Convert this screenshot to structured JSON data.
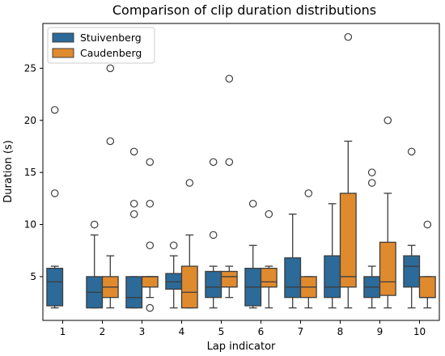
{
  "chart_data": {
    "type": "box",
    "title": "Comparison of clip duration distributions",
    "xlabel": "Lap indicator",
    "ylabel": "Duration (s)",
    "categories": [
      "1",
      "2",
      "3",
      "4",
      "5",
      "6",
      "7",
      "8",
      "9",
      "10"
    ],
    "ylim": [
      0.8,
      29.3
    ],
    "yticks": [
      5,
      10,
      15,
      20,
      25
    ],
    "grid": false,
    "legend_position": "top-left",
    "series": [
      {
        "name": "Stuivenberg",
        "color": "#2b6a99",
        "boxes": [
          {
            "category": "1",
            "whisker_low": 2,
            "q1": 2.2,
            "median": 4.5,
            "q3": 5.8,
            "whisker_high": 6,
            "outliers": [
              13,
              21
            ]
          },
          {
            "category": "2",
            "whisker_low": 2,
            "q1": 2,
            "median": 3.5,
            "q3": 5,
            "whisker_high": 9,
            "outliers": [
              10
            ]
          },
          {
            "category": "3",
            "whisker_low": 2,
            "q1": 2,
            "median": 3,
            "q3": 5,
            "whisker_high": 5,
            "outliers": [
              11,
              12,
              17
            ]
          },
          {
            "category": "4",
            "whisker_low": 2,
            "q1": 3.8,
            "median": 4.5,
            "q3": 5.3,
            "whisker_high": 7,
            "outliers": [
              8
            ]
          },
          {
            "category": "5",
            "whisker_low": 2,
            "q1": 3,
            "median": 4,
            "q3": 5.5,
            "whisker_high": 6,
            "outliers": [
              9,
              16
            ]
          },
          {
            "category": "6",
            "whisker_low": 2,
            "q1": 2.2,
            "median": 4,
            "q3": 5.8,
            "whisker_high": 8,
            "outliers": [
              12
            ]
          },
          {
            "category": "7",
            "whisker_low": 2,
            "q1": 3,
            "median": 4,
            "q3": 6.8,
            "whisker_high": 11,
            "outliers": []
          },
          {
            "category": "8",
            "whisker_low": 2,
            "q1": 3,
            "median": 4,
            "q3": 7,
            "whisker_high": 12,
            "outliers": []
          },
          {
            "category": "9",
            "whisker_low": 2,
            "q1": 3,
            "median": 4,
            "q3": 5,
            "whisker_high": 6,
            "outliers": [
              14,
              15
            ]
          },
          {
            "category": "10",
            "whisker_low": 2,
            "q1": 4,
            "median": 6,
            "q3": 7,
            "whisker_high": 8,
            "outliers": [
              17
            ]
          }
        ]
      },
      {
        "name": "Caudenberg",
        "color": "#e08a2e",
        "boxes": [
          {
            "category": "1",
            "whisker_low": null,
            "q1": null,
            "median": null,
            "q3": null,
            "whisker_high": null,
            "outliers": []
          },
          {
            "category": "2",
            "whisker_low": 2,
            "q1": 3,
            "median": 4,
            "q3": 5,
            "whisker_high": 7,
            "outliers": [
              18,
              25
            ]
          },
          {
            "category": "3",
            "whisker_low": 3,
            "q1": 4,
            "median": 5,
            "q3": 5,
            "whisker_high": 5,
            "outliers": [
              2,
              8,
              12,
              16
            ]
          },
          {
            "category": "4",
            "whisker_low": 2,
            "q1": 2,
            "median": 3.5,
            "q3": 6,
            "whisker_high": 9,
            "outliers": [
              14
            ]
          },
          {
            "category": "5",
            "whisker_low": 3,
            "q1": 4,
            "median": 5,
            "q3": 5.5,
            "whisker_high": 6,
            "outliers": [
              16,
              24
            ]
          },
          {
            "category": "6",
            "whisker_low": 2,
            "q1": 4,
            "median": 4.5,
            "q3": 5.8,
            "whisker_high": 6,
            "outliers": [
              11
            ]
          },
          {
            "category": "7",
            "whisker_low": 2,
            "q1": 3,
            "median": 4,
            "q3": 5,
            "whisker_high": 5,
            "outliers": [
              13
            ]
          },
          {
            "category": "8",
            "whisker_low": 2,
            "q1": 4,
            "median": 5,
            "q3": 13,
            "whisker_high": 18,
            "outliers": [
              28
            ]
          },
          {
            "category": "9",
            "whisker_low": 2,
            "q1": 3.2,
            "median": 4.5,
            "q3": 8.3,
            "whisker_high": 13,
            "outliers": [
              20
            ]
          },
          {
            "category": "10",
            "whisker_low": 2,
            "q1": 3,
            "median": 3,
            "q3": 5,
            "whisker_high": 5,
            "outliers": [
              10
            ]
          }
        ]
      }
    ]
  }
}
